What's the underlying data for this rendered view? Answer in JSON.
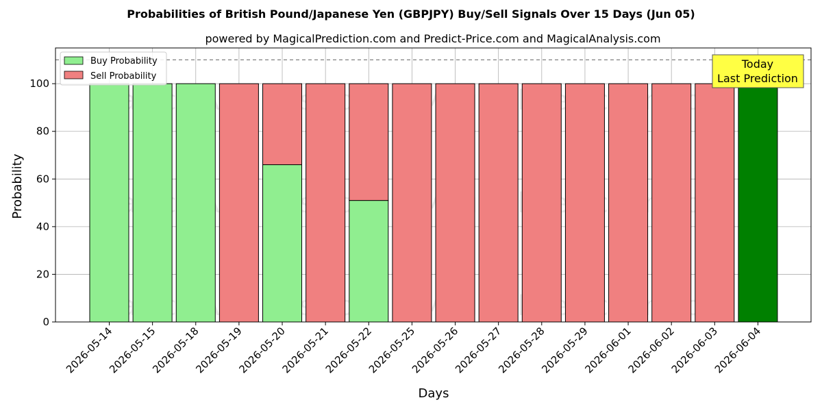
{
  "chart_data": {
    "type": "bar",
    "stacked": true,
    "title": "Probabilities of British Pound/Japanese Yen (GBPJPY) Buy/Sell Signals Over 15 Days (Jun 05)",
    "subtitle": "powered by MagicalPrediction.com and Predict-Price.com and MagicalAnalysis.com",
    "xlabel": "Days",
    "ylabel": "Probability",
    "ylim": [
      0,
      115
    ],
    "yticks": [
      0,
      20,
      40,
      60,
      80,
      100
    ],
    "grid": true,
    "legend_position": "top-left",
    "reference_line": 110,
    "categories": [
      "2026-05-14",
      "2026-05-15",
      "2026-05-18",
      "2026-05-19",
      "2026-05-20",
      "2026-05-21",
      "2026-05-22",
      "2026-05-25",
      "2026-05-26",
      "2026-05-27",
      "2026-05-28",
      "2026-05-29",
      "2026-06-01",
      "2026-06-02",
      "2026-06-03",
      "2026-06-04"
    ],
    "series": [
      {
        "name": "Buy Probability",
        "color": "#90ee90",
        "values": [
          100,
          100,
          100,
          0,
          66,
          0,
          51,
          0,
          0,
          0,
          0,
          0,
          0,
          0,
          0,
          100
        ]
      },
      {
        "name": "Sell Probability",
        "color": "#f08080",
        "values": [
          0,
          0,
          0,
          100,
          34,
          100,
          49,
          100,
          100,
          100,
          100,
          100,
          100,
          100,
          100,
          0
        ]
      }
    ],
    "highlight": {
      "index": 15,
      "color": "#008000"
    },
    "annotation": {
      "line1": "Today",
      "line2": "Last Prediction",
      "color": "#ffff44"
    },
    "watermarks": [
      "MagicalAnalysis.com",
      "MagicalPrediction.com"
    ]
  }
}
